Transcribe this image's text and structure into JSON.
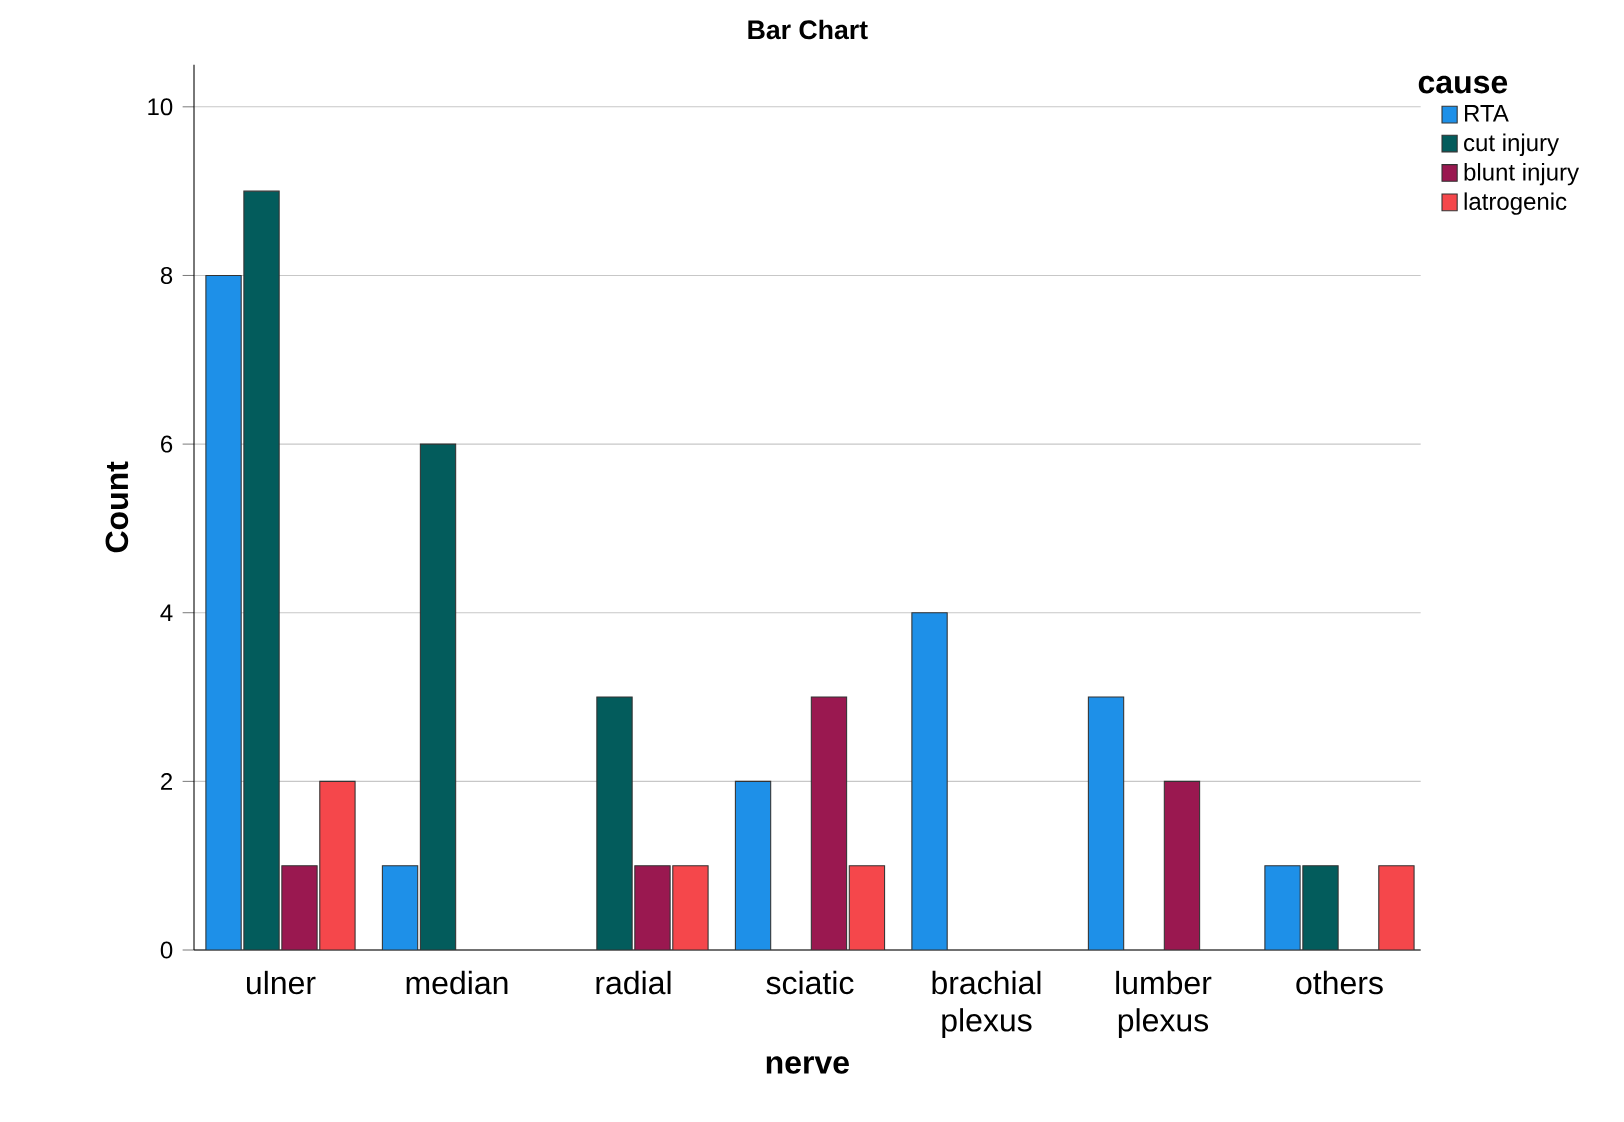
{
  "chart_data": {
    "type": "bar",
    "title": "Bar Chart",
    "xlabel": "nerve",
    "ylabel": "Count",
    "legend_title": "cause",
    "categories": [
      "ulner",
      "median",
      "radial",
      "sciatic",
      "brachial plexus",
      "lumber plexus",
      "others"
    ],
    "series": [
      {
        "name": "RTA",
        "color": "#1e90e8",
        "values": [
          8,
          1,
          null,
          2,
          4,
          3,
          1
        ]
      },
      {
        "name": "cut injury",
        "color": "#035c5c",
        "values": [
          9,
          6,
          3,
          null,
          null,
          null,
          1
        ]
      },
      {
        "name": "blunt injury",
        "color": "#9a1850",
        "values": [
          1,
          null,
          1,
          3,
          null,
          2,
          null
        ]
      },
      {
        "name": "latrogenic",
        "color": "#f5474b",
        "values": [
          2,
          null,
          1,
          1,
          null,
          null,
          1
        ]
      }
    ],
    "ylim": [
      0,
      10.5
    ],
    "yticks": [
      0,
      2,
      4,
      6,
      8,
      10
    ],
    "grid": "y",
    "legend": "top right"
  }
}
